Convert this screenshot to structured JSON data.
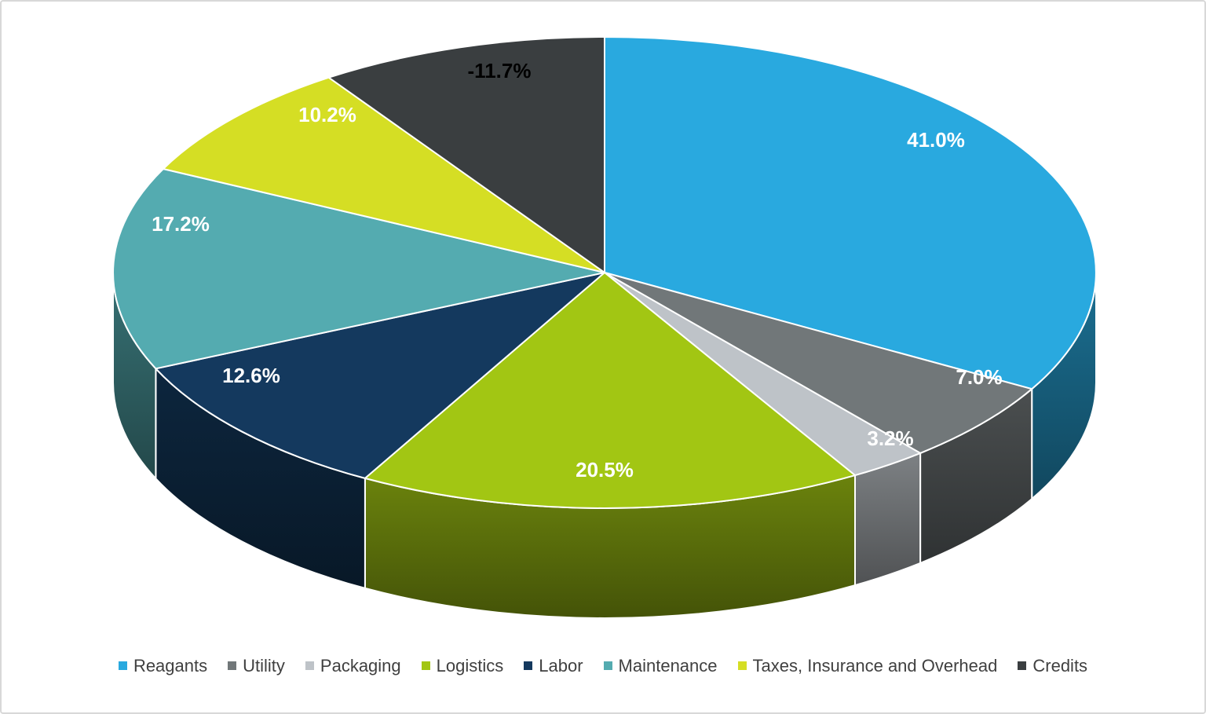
{
  "chart_data": {
    "type": "pie",
    "variant": "3d",
    "legend_position": "bottom",
    "categories": [
      "Reagants",
      "Utility",
      "Packaging",
      "Logistics",
      "Labor",
      "Maintenance",
      "Taxes, Insurance and Overhead",
      "Credits"
    ],
    "values": [
      41.0,
      7.0,
      3.2,
      20.5,
      12.6,
      17.2,
      10.2,
      -11.7
    ],
    "data_labels": [
      "41.0%",
      "7.0%",
      "3.2%",
      "20.5%",
      "12.6%",
      "17.2%",
      "10.2%",
      "-11.7%"
    ],
    "slice_colors": [
      "#29A9DF",
      "#717779",
      "#BEC3C8",
      "#A2C613",
      "#14395E",
      "#54ABB0",
      "#D5DE24",
      "#3A3E40"
    ],
    "data_label_colors": [
      "#FFFFFF",
      "#FFFFFF",
      "#FFFFFF",
      "#FFFFFF",
      "#FFFFFF",
      "#FFFFFF",
      "#FFFFFF",
      "#000000"
    ],
    "slice_border_color": "#FFFFFF",
    "legend_text_color": "#404040",
    "chart_background": "#FFFFFF",
    "frame_border_color": "#D8D8D8"
  }
}
